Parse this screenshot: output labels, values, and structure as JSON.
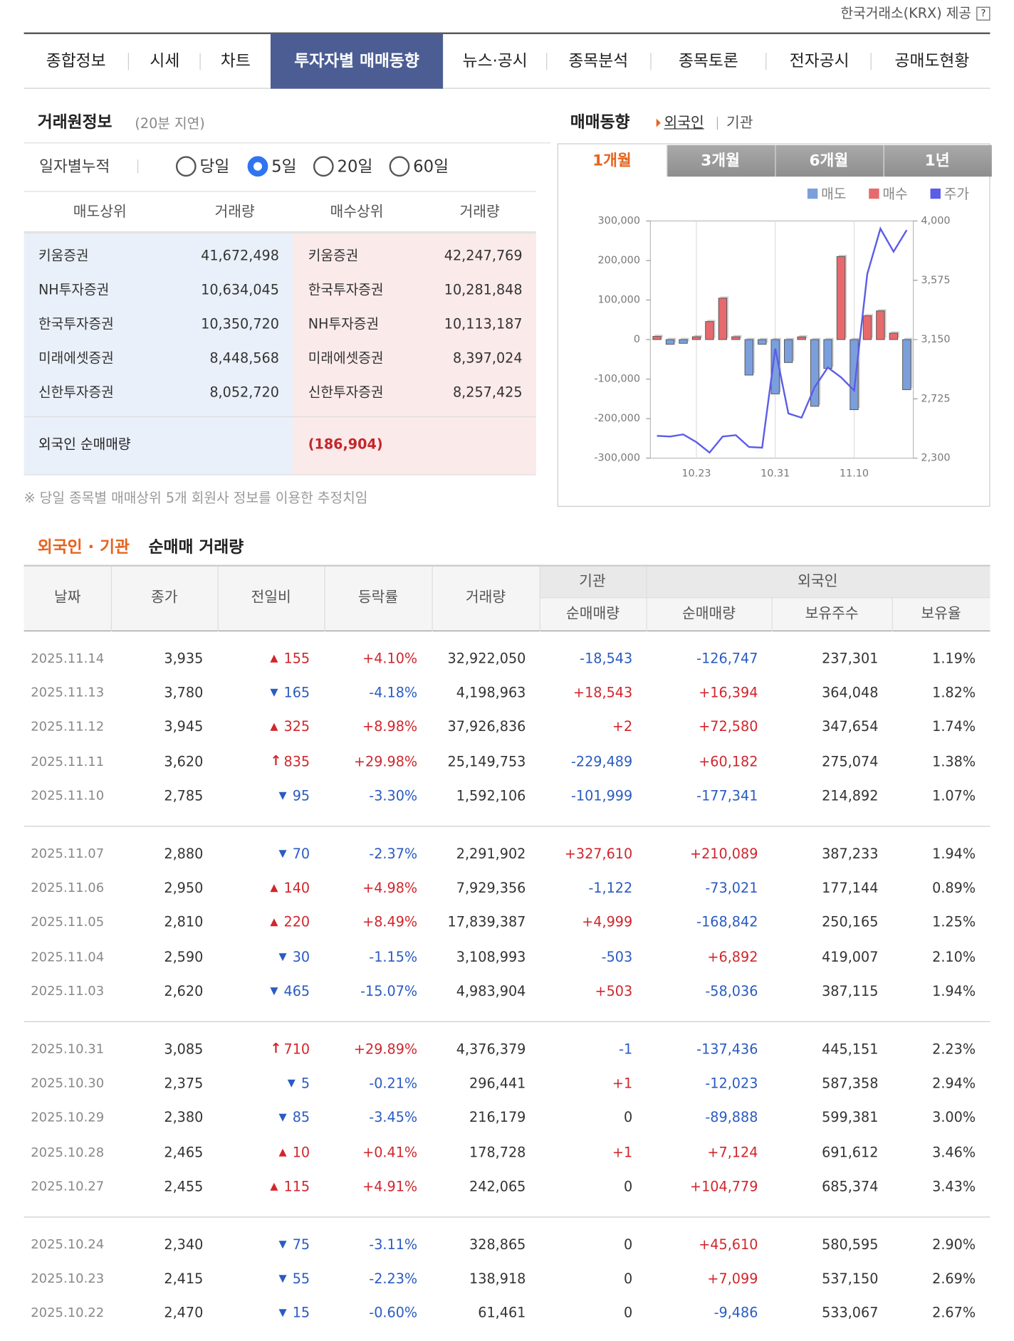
{
  "header": {
    "provider": "한국거래소(KRX) 제공"
  },
  "tabs": [
    "종합정보",
    "시세",
    "차트",
    "투자자별 매매동향",
    "뉴스·공시",
    "종목분석",
    "종목토론",
    "전자공시",
    "공매도현황"
  ],
  "broker_info": {
    "title": "거래원정보",
    "delay": "(20분 지연)",
    "period_label": "일자별누적",
    "periods": [
      "당일",
      "5일",
      "20일",
      "60일"
    ],
    "headers": [
      "매도상위",
      "거래량",
      "매수상위",
      "거래량"
    ],
    "rows": [
      [
        "키움증권",
        "41,672,498",
        "키움증권",
        "42,247,769"
      ],
      [
        "NH투자증권",
        "10,634,045",
        "한국투자증권",
        "10,281,848"
      ],
      [
        "한국투자증권",
        "10,350,720",
        "NH투자증권",
        "10,113,187"
      ],
      [
        "미래에셋증권",
        "8,448,568",
        "미래에셋증권",
        "8,397,024"
      ],
      [
        "신한투자증권",
        "8,052,720",
        "신한투자증권",
        "8,257,425"
      ]
    ],
    "foreign_label": "외국인 순매매량",
    "foreign_value": "(186,904)",
    "note": "※ 당일 종목별 매매상위 5개 회원사 정보를 이용한 추정치임"
  },
  "trend": {
    "title": "매매동향",
    "filters": [
      "외국인",
      "기관"
    ],
    "ranges": [
      "1개월",
      "3개월",
      "6개월",
      "1년"
    ],
    "chart_data": {
      "type": "bar",
      "categories": [
        null,
        null,
        null,
        "10.23",
        null,
        null,
        null,
        null,
        null,
        "10.31",
        null,
        null,
        null,
        null,
        null,
        "11.10",
        null,
        null,
        null,
        null
      ],
      "series": [
        {
          "name": "매도",
          "color": "#7b9fdc",
          "values": [
            null,
            -12000,
            -9486,
            null,
            null,
            null,
            null,
            -89888,
            -12023,
            -137436,
            -58036,
            null,
            -168842,
            -73021,
            null,
            -177341,
            null,
            null,
            null,
            -126747
          ]
        },
        {
          "name": "매수",
          "color": "#e66a6d",
          "values": [
            8000,
            null,
            null,
            7099,
            45610,
            104779,
            7124,
            null,
            null,
            null,
            null,
            6892,
            null,
            null,
            210089,
            null,
            60182,
            72580,
            16394,
            null
          ]
        },
        {
          "name": "주가",
          "color": "#5b5ce8",
          "axis": "y2",
          "values": [
            2460,
            2455,
            2470,
            2415,
            2340,
            2455,
            2465,
            2380,
            2375,
            3085,
            2620,
            2590,
            2810,
            2950,
            2880,
            2785,
            3620,
            3945,
            3780,
            3935
          ]
        }
      ],
      "ylim": [
        -300000,
        300000
      ],
      "yticks": [
        {
          "value": -300000,
          "label": "-300,000"
        },
        {
          "value": -200000,
          "label": "-200,000"
        },
        {
          "value": -100000,
          "label": "-100,000"
        },
        0,
        {
          "value": 100000,
          "label": "100,000"
        },
        {
          "value": 200000,
          "label": "200,000"
        },
        {
          "value": 300000,
          "label": "300,000"
        }
      ],
      "y2lim": [
        2300,
        4000
      ],
      "y2ticks": [
        {
          "value": 2300,
          "label": "2,300"
        },
        {
          "value": 2725,
          "label": "2,725"
        },
        {
          "value": 3150,
          "label": "3,150"
        },
        {
          "value": 3575,
          "label": "3,575"
        },
        {
          "value": 4000,
          "label": "4,000"
        }
      ],
      "grid": true
    }
  },
  "net_trading": {
    "title_highlight": "외국인 · 기관",
    "title_rest": "순매매 거래량",
    "group_headers": [
      "기관",
      "외국인"
    ],
    "headers": [
      "날짜",
      "종가",
      "전일비",
      "등락률",
      "거래량",
      "순매매량",
      "순매매량",
      "보유주수",
      "보유율"
    ],
    "groups": [
      [
        [
          "2025.11.14",
          "3,935",
          "155",
          "+4.10%",
          "32,922,050",
          "-18,543",
          "-126,747",
          "237,301",
          "1.19%"
        ],
        [
          "2025.11.13",
          "3,780",
          "165",
          "-4.18%",
          "4,198,963",
          "+18,543",
          "+16,394",
          "364,048",
          "1.82%"
        ],
        [
          "2025.11.12",
          "3,945",
          "325",
          "+8.98%",
          "37,926,836",
          "+2",
          "+72,580",
          "347,654",
          "1.74%"
        ],
        [
          "2025.11.11",
          "3,620",
          "835",
          "+29.98%",
          "25,149,753",
          "-229,489",
          "+60,182",
          "275,074",
          "1.38%"
        ],
        [
          "2025.11.10",
          "2,785",
          "95",
          "-3.30%",
          "1,592,106",
          "-101,999",
          "-177,341",
          "214,892",
          "1.07%"
        ]
      ],
      [
        [
          "2025.11.07",
          "2,880",
          "70",
          "-2.37%",
          "2,291,902",
          "+327,610",
          "+210,089",
          "387,233",
          "1.94%"
        ],
        [
          "2025.11.06",
          "2,950",
          "140",
          "+4.98%",
          "7,929,356",
          "-1,122",
          "-73,021",
          "177,144",
          "0.89%"
        ],
        [
          "2025.11.05",
          "2,810",
          "220",
          "+8.49%",
          "17,839,387",
          "+4,999",
          "-168,842",
          "250,165",
          "1.25%"
        ],
        [
          "2025.11.04",
          "2,590",
          "30",
          "-1.15%",
          "3,108,993",
          "-503",
          "+6,892",
          "419,007",
          "2.10%"
        ],
        [
          "2025.11.03",
          "2,620",
          "465",
          "-15.07%",
          "4,983,904",
          "+503",
          "-58,036",
          "387,115",
          "1.94%"
        ]
      ],
      [
        [
          "2025.10.31",
          "3,085",
          "710",
          "+29.89%",
          "4,376,379",
          "-1",
          "-137,436",
          "445,151",
          "2.23%"
        ],
        [
          "2025.10.30",
          "2,375",
          "5",
          "-0.21%",
          "296,441",
          "+1",
          "-12,023",
          "587,358",
          "2.94%"
        ],
        [
          "2025.10.29",
          "2,380",
          "85",
          "-3.45%",
          "216,179",
          "0",
          "-89,888",
          "599,381",
          "3.00%"
        ],
        [
          "2025.10.28",
          "2,465",
          "10",
          "+0.41%",
          "178,728",
          "+1",
          "+7,124",
          "691,612",
          "3.46%"
        ],
        [
          "2025.10.27",
          "2,455",
          "115",
          "+4.91%",
          "242,065",
          "0",
          "+104,779",
          "685,374",
          "3.43%"
        ]
      ],
      [
        [
          "2025.10.24",
          "2,340",
          "75",
          "-3.11%",
          "328,865",
          "0",
          "+45,610",
          "580,595",
          "2.90%"
        ],
        [
          "2025.10.23",
          "2,415",
          "55",
          "-2.23%",
          "138,918",
          "0",
          "+7,099",
          "537,150",
          "2.69%"
        ],
        [
          "2025.10.22",
          "2,470",
          "15",
          "-0.60%",
          "61,461",
          "0",
          "-9,486",
          "533,067",
          "2.67%"
        ]
      ]
    ]
  }
}
